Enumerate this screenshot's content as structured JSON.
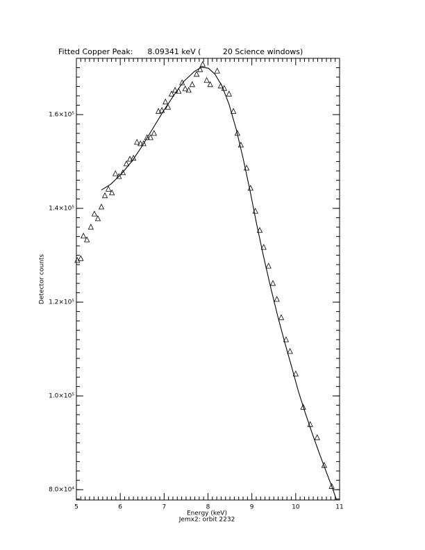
{
  "chart_data": {
    "type": "scatter",
    "title": "Fitted Copper Peak:      8.09341 keV (         20 Science windows)",
    "x_label": "Energy (keV)",
    "subtitle": "Jemx2: orbit 2232",
    "y_label": "Detector counts",
    "xlim": [
      5,
      11
    ],
    "xticks": [
      5,
      6,
      7,
      8,
      9,
      10,
      11
    ],
    "ylim": [
      77800,
      172000
    ],
    "yticks": [
      {
        "value": 80000,
        "label": "8.0×10⁴"
      },
      {
        "value": 100000,
        "label": "1.0×10⁵"
      },
      {
        "value": 120000,
        "label": "1.2×10⁵"
      },
      {
        "value": 140000,
        "label": "1.4×10⁵"
      },
      {
        "value": 160000,
        "label": "1.6×10⁵"
      }
    ],
    "xminor": 10,
    "yminor": 10,
    "series": [
      {
        "color": "#000000",
        "marker": "triangle",
        "x": [
          5.02,
          5.1,
          5.16,
          5.24,
          5.33,
          5.41,
          5.49,
          5.57,
          5.65,
          5.73,
          5.81,
          5.89,
          5.97,
          6.06,
          6.14,
          6.22,
          6.3,
          6.38,
          6.46,
          6.53,
          6.61,
          6.69,
          6.77,
          6.87,
          6.95,
          7.03,
          7.09,
          7.17,
          7.25,
          7.33,
          7.41,
          7.48,
          7.56,
          7.64,
          7.74,
          7.82,
          7.88,
          7.97,
          8.05,
          8.21,
          8.29,
          8.37,
          8.48,
          8.58,
          8.67,
          8.75,
          8.88,
          8.97,
          9.08,
          9.18,
          9.27,
          9.38,
          9.48,
          9.57,
          9.67,
          9.78,
          9.87,
          10.0,
          10.17,
          10.33,
          10.49,
          10.65,
          10.82
        ],
        "values": [
          128900,
          129300,
          134100,
          133300,
          136000,
          138800,
          137800,
          140300,
          142700,
          144100,
          143300,
          147400,
          146800,
          147600,
          149500,
          150500,
          150700,
          154100,
          153800,
          153800,
          155100,
          155100,
          156000,
          160700,
          160900,
          162700,
          161600,
          164400,
          165200,
          165000,
          166800,
          165500,
          165200,
          166400,
          168600,
          169600,
          170700,
          167300,
          166400,
          169300,
          166100,
          165600,
          164400,
          160700,
          156000,
          153500,
          148600,
          144300,
          139400,
          135300,
          131700,
          127700,
          124000,
          120600,
          116700,
          112000,
          109500,
          104700,
          97600,
          93900,
          91100,
          85200,
          80700
        ]
      },
      {
        "color": "#000000",
        "marker": "line",
        "x": [
          5.57,
          5.79,
          6.03,
          6.27,
          6.5,
          6.74,
          6.98,
          7.22,
          7.45,
          7.69,
          7.85,
          8.01,
          8.16,
          8.32,
          8.48,
          8.64,
          8.8,
          8.96,
          9.11,
          9.27,
          9.43,
          9.59,
          9.75,
          9.91,
          10.06,
          10.22,
          10.38,
          10.54,
          10.7,
          10.85,
          10.93
        ],
        "values": [
          143900,
          145200,
          147400,
          150100,
          153300,
          157000,
          160700,
          164100,
          167100,
          169200,
          170100,
          169900,
          168600,
          166100,
          162200,
          157000,
          150700,
          143700,
          136600,
          129600,
          123100,
          117000,
          111400,
          106100,
          101000,
          96300,
          91900,
          87700,
          83700,
          80000,
          77800
        ]
      }
    ]
  }
}
